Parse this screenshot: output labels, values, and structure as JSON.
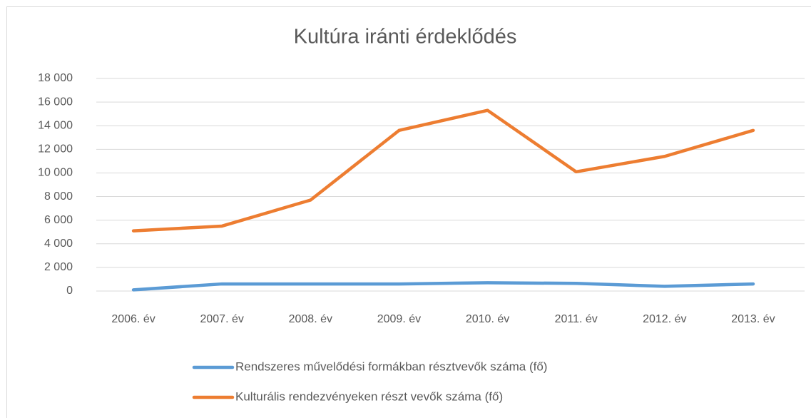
{
  "chart_data": {
    "type": "line",
    "title": "Kultúra iránti érdeklődés",
    "categories": [
      "2006. év",
      "2007. év",
      "2008. év",
      "2009. év",
      "2010. év",
      "2011. év",
      "2012. év",
      "2013. év"
    ],
    "series": [
      {
        "name": "Rendszeres művelődési formákban résztvevők száma (fő)",
        "color": "#5b9bd5",
        "values": [
          100,
          600,
          600,
          600,
          700,
          650,
          400,
          600
        ]
      },
      {
        "name": "Kulturális rendezvényeken részt vevők száma (fő)",
        "color": "#ed7d31",
        "values": [
          5100,
          5500,
          7700,
          13600,
          15300,
          10100,
          11400,
          13600
        ]
      }
    ],
    "ylim": [
      0,
      18000
    ],
    "yticks": [
      0,
      {
        "value": 2000,
        "label": "2 000"
      },
      {
        "value": 4000,
        "label": "4 000"
      },
      {
        "value": 6000,
        "label": "6 000"
      },
      {
        "value": 8000,
        "label": "8 000"
      },
      {
        "value": 10000,
        "label": "10 000"
      },
      {
        "value": 12000,
        "label": "12 000"
      },
      {
        "value": 14000,
        "label": "14 000"
      },
      {
        "value": 16000,
        "label": "16 000"
      },
      {
        "value": 18000,
        "label": "18 000"
      }
    ],
    "grid": true,
    "legend": "bottom"
  }
}
